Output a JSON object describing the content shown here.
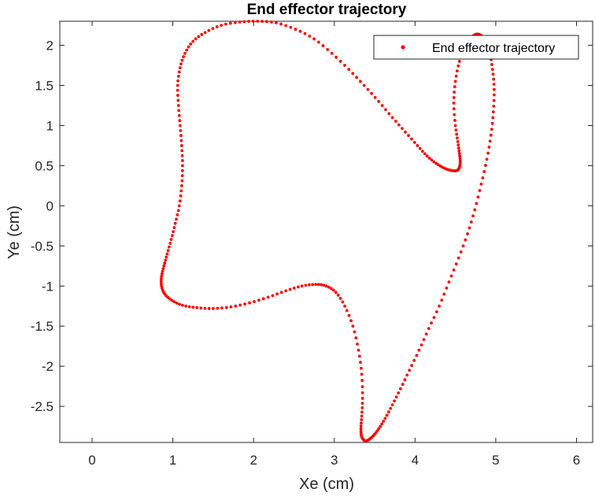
{
  "chart_data": {
    "type": "scatter",
    "title": "End effector trajectory",
    "xlabel": "Xe (cm)",
    "ylabel": "Ye (cm)",
    "xlim": [
      -0.4,
      6.2
    ],
    "ylim": [
      -2.95,
      2.3
    ],
    "xticks": [
      "0",
      "1",
      "2",
      "3",
      "4",
      "5",
      "6"
    ],
    "yticks": [
      "-2.5",
      "-2",
      "-1.5",
      "-1",
      "-0.5",
      "0",
      "0.5",
      "1",
      "1.5",
      "2"
    ],
    "grid": false,
    "legend_position": "top-right",
    "series": [
      {
        "name": "End effector trajectory",
        "color": "#ff0000",
        "marker": "dot",
        "x": [
          3.42,
          3.48,
          3.55,
          3.63,
          3.72,
          3.82,
          3.93,
          4.05,
          4.17,
          4.3,
          4.42,
          4.54,
          4.65,
          4.74,
          4.82,
          4.89,
          4.94,
          4.97,
          4.98,
          4.96,
          4.92,
          4.86,
          4.78,
          4.7,
          4.62,
          4.55,
          4.5,
          4.48,
          4.5,
          4.53,
          4.55,
          4.56,
          4.55,
          4.52,
          4.45,
          4.36,
          4.26,
          4.15,
          4.03,
          3.88,
          3.72,
          3.55,
          3.37,
          3.18,
          2.97,
          2.75,
          2.52,
          2.28,
          2.05,
          1.83,
          1.6,
          1.4,
          1.25,
          1.15,
          1.09,
          1.06,
          1.07,
          1.09,
          1.11,
          1.12,
          1.11,
          1.08,
          1.03,
          0.98,
          0.93,
          0.89,
          0.86,
          0.86,
          0.9,
          0.99,
          1.12,
          1.3,
          1.5,
          1.72,
          1.95,
          2.18,
          2.4,
          2.6,
          2.77,
          2.9,
          3.02,
          3.13,
          3.23,
          3.3,
          3.34,
          3.35,
          3.34,
          3.33,
          3.34,
          3.38,
          3.42
        ],
        "y": [
          -2.92,
          -2.87,
          -2.78,
          -2.65,
          -2.48,
          -2.28,
          -2.05,
          -1.8,
          -1.53,
          -1.25,
          -0.95,
          -0.65,
          -0.35,
          -0.05,
          0.27,
          0.58,
          0.88,
          1.17,
          1.45,
          1.7,
          1.93,
          2.08,
          2.14,
          2.1,
          1.98,
          1.8,
          1.55,
          1.28,
          1.0,
          0.8,
          0.65,
          0.55,
          0.48,
          0.44,
          0.44,
          0.47,
          0.53,
          0.62,
          0.75,
          0.92,
          1.1,
          1.3,
          1.5,
          1.7,
          1.9,
          2.08,
          2.2,
          2.28,
          2.3,
          2.29,
          2.25,
          2.16,
          2.05,
          1.9,
          1.72,
          1.5,
          1.25,
          1.0,
          0.75,
          0.5,
          0.25,
          0.0,
          -0.22,
          -0.42,
          -0.6,
          -0.75,
          -0.88,
          -1.0,
          -1.1,
          -1.18,
          -1.24,
          -1.27,
          -1.28,
          -1.26,
          -1.21,
          -1.14,
          -1.06,
          -1.0,
          -0.98,
          -1.0,
          -1.08,
          -1.25,
          -1.5,
          -1.8,
          -2.1,
          -2.4,
          -2.62,
          -2.78,
          -2.88,
          -2.93,
          -2.92
        ]
      }
    ]
  }
}
